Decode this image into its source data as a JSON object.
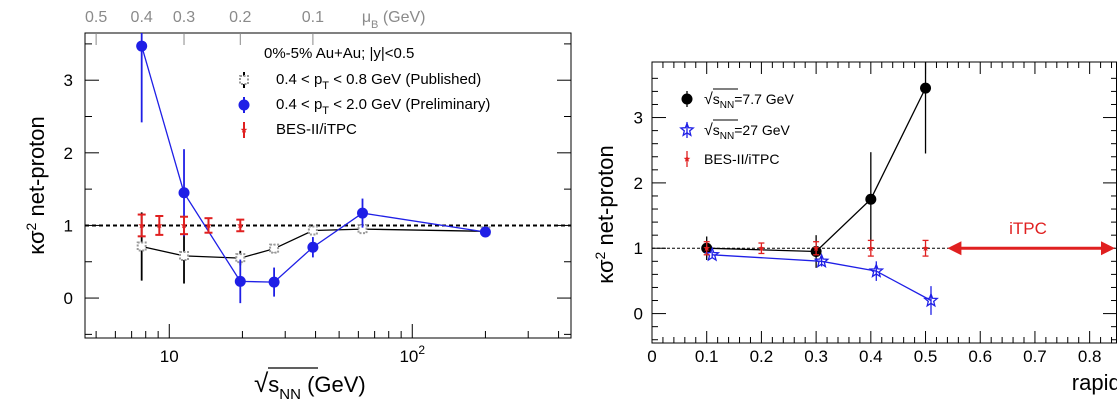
{
  "chart_data": [
    {
      "type": "scatter",
      "xscale": "log",
      "xlim": [
        4.5,
        450
      ],
      "ylim": [
        -0.55,
        3.65
      ],
      "xlabel": "√s_NN (GeV)",
      "xlabel_parts": {
        "root": "s",
        "sub": "NN",
        "unit": "(GeV)"
      },
      "ylabel": "κσ² net-proton",
      "ylabel_parts": {
        "main": "κσ",
        "sup": "2",
        "rest": " net-proton"
      },
      "x_ticks": [
        {
          "v": 10,
          "label": "10"
        },
        {
          "v": 100,
          "label": "10",
          "sup": "2"
        }
      ],
      "y_ticks": [
        0,
        1,
        2,
        3
      ],
      "top_axis": {
        "label_main": "μ",
        "label_sub": "B",
        "label_unit": "(GeV)",
        "ticks": [
          {
            "label": "0.5",
            "x": 5.0
          },
          {
            "label": "0.4",
            "x": 7.7
          },
          {
            "label": "0.3",
            "x": 11.5
          },
          {
            "label": "0.2",
            "x": 19.6
          },
          {
            "label": "0.1",
            "x": 39
          }
        ]
      },
      "annotation": "0%-5% Au+Au; |y|<0.5",
      "reference_line": 1,
      "series": [
        {
          "name": "0.4 < p_T < 0.8 GeV (Published)",
          "name_parts": {
            "pre": "0.4 < p",
            "sub": "T",
            "post": " < 0.8 GeV (Published)"
          },
          "color": "#000000",
          "marker": "cross",
          "points": [
            {
              "x": 7.7,
              "y": 0.71,
              "err": 0.47
            },
            {
              "x": 11.5,
              "y": 0.58,
              "err": 0.38
            },
            {
              "x": 19.6,
              "y": 0.55,
              "err": 0.1
            },
            {
              "x": 27,
              "y": 0.68,
              "err": 0.06
            },
            {
              "x": 39,
              "y": 0.93,
              "err": 0.05
            },
            {
              "x": 62.4,
              "y": 0.95,
              "err": 0.05
            },
            {
              "x": 200,
              "y": 0.92,
              "err": 0.05
            }
          ]
        },
        {
          "name": "0.4 < p_T < 2.0 GeV (Preliminary)",
          "name_parts": {
            "pre": "0.4 < p",
            "sub": "T",
            "post": " < 2.0 GeV (Preliminary)"
          },
          "color": "#1f1fe6",
          "marker": "circle",
          "points": [
            {
              "x": 7.7,
              "y": 3.47,
              "err": 1.05
            },
            {
              "x": 11.5,
              "y": 1.45,
              "err": 0.6
            },
            {
              "x": 19.6,
              "y": 0.23,
              "err": 0.3
            },
            {
              "x": 27,
              "y": 0.22,
              "err": 0.2
            },
            {
              "x": 39,
              "y": 0.7,
              "err": 0.14
            },
            {
              "x": 62.4,
              "y": 1.17,
              "err": 0.2
            },
            {
              "x": 200,
              "y": 0.91,
              "err": 0.06
            }
          ]
        },
        {
          "name": "BES-II/iTPC",
          "color": "#e02020",
          "marker": "bar",
          "points": [
            {
              "x": 7.7,
              "y": 1.0,
              "err": 0.15
            },
            {
              "x": 9.1,
              "y": 1.0,
              "err": 0.13
            },
            {
              "x": 11.5,
              "y": 1.0,
              "err": 0.12
            },
            {
              "x": 14.5,
              "y": 1.0,
              "err": 0.1
            },
            {
              "x": 19.6,
              "y": 1.0,
              "err": 0.08
            }
          ]
        }
      ]
    },
    {
      "type": "scatter",
      "xlim": [
        0,
        0.85
      ],
      "ylim": [
        -0.45,
        3.85
      ],
      "xlabel": "rapidity width",
      "ylabel": "κσ² net-proton",
      "ylabel_parts": {
        "main": "κσ",
        "sup": "2",
        "rest": " net-proton"
      },
      "x_ticks": [
        0,
        0.1,
        0.2,
        0.3,
        0.4,
        0.5,
        0.6,
        0.7,
        0.8
      ],
      "y_ticks": [
        0,
        1,
        2,
        3
      ],
      "reference_line": 1,
      "annotation": "iTPC",
      "annotation_color": "#e02020",
      "arrow_range": [
        0.54,
        0.85
      ],
      "series": [
        {
          "name": "√s_NN=7.7 GeV",
          "name_parts": {
            "sub": "NN",
            "post": "=7.7 GeV"
          },
          "color": "#000000",
          "marker": "circle",
          "points": [
            {
              "x": 0.1,
              "y": 1.0,
              "err": 0.18
            },
            {
              "x": 0.3,
              "y": 0.95,
              "err": 0.25
            },
            {
              "x": 0.4,
              "y": 1.75,
              "err": 0.72
            },
            {
              "x": 0.5,
              "y": 3.45,
              "err": 1.0
            }
          ]
        },
        {
          "name": "√s_NN=27 GeV",
          "name_parts": {
            "sub": "NN",
            "post": "=27 GeV"
          },
          "color": "#1f1fe6",
          "marker": "star",
          "points": [
            {
              "x": 0.11,
              "y": 0.9,
              "err": 0.05
            },
            {
              "x": 0.31,
              "y": 0.8,
              "err": 0.08
            },
            {
              "x": 0.41,
              "y": 0.65,
              "err": 0.15
            },
            {
              "x": 0.51,
              "y": 0.2,
              "err": 0.22
            }
          ]
        },
        {
          "name": "BES-II/iTPC",
          "color": "#e02020",
          "marker": "bar",
          "points": [
            {
              "x": 0.1,
              "y": 1.0,
              "err": 0.1
            },
            {
              "x": 0.2,
              "y": 1.0,
              "err": 0.08
            },
            {
              "x": 0.3,
              "y": 1.0,
              "err": 0.1
            },
            {
              "x": 0.4,
              "y": 1.0,
              "err": 0.12
            },
            {
              "x": 0.5,
              "y": 1.0,
              "err": 0.12
            }
          ]
        }
      ]
    }
  ]
}
